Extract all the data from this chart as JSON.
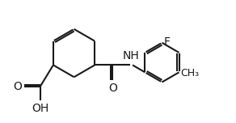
{
  "background_color": "#ffffff",
  "line_color": "#1a1a1a",
  "bond_lw": 1.5,
  "font_size": 10,
  "fig_width": 2.92,
  "fig_height": 1.52,
  "dpi": 100,
  "xlim": [
    0,
    10
  ],
  "ylim": [
    0,
    6.5
  ]
}
